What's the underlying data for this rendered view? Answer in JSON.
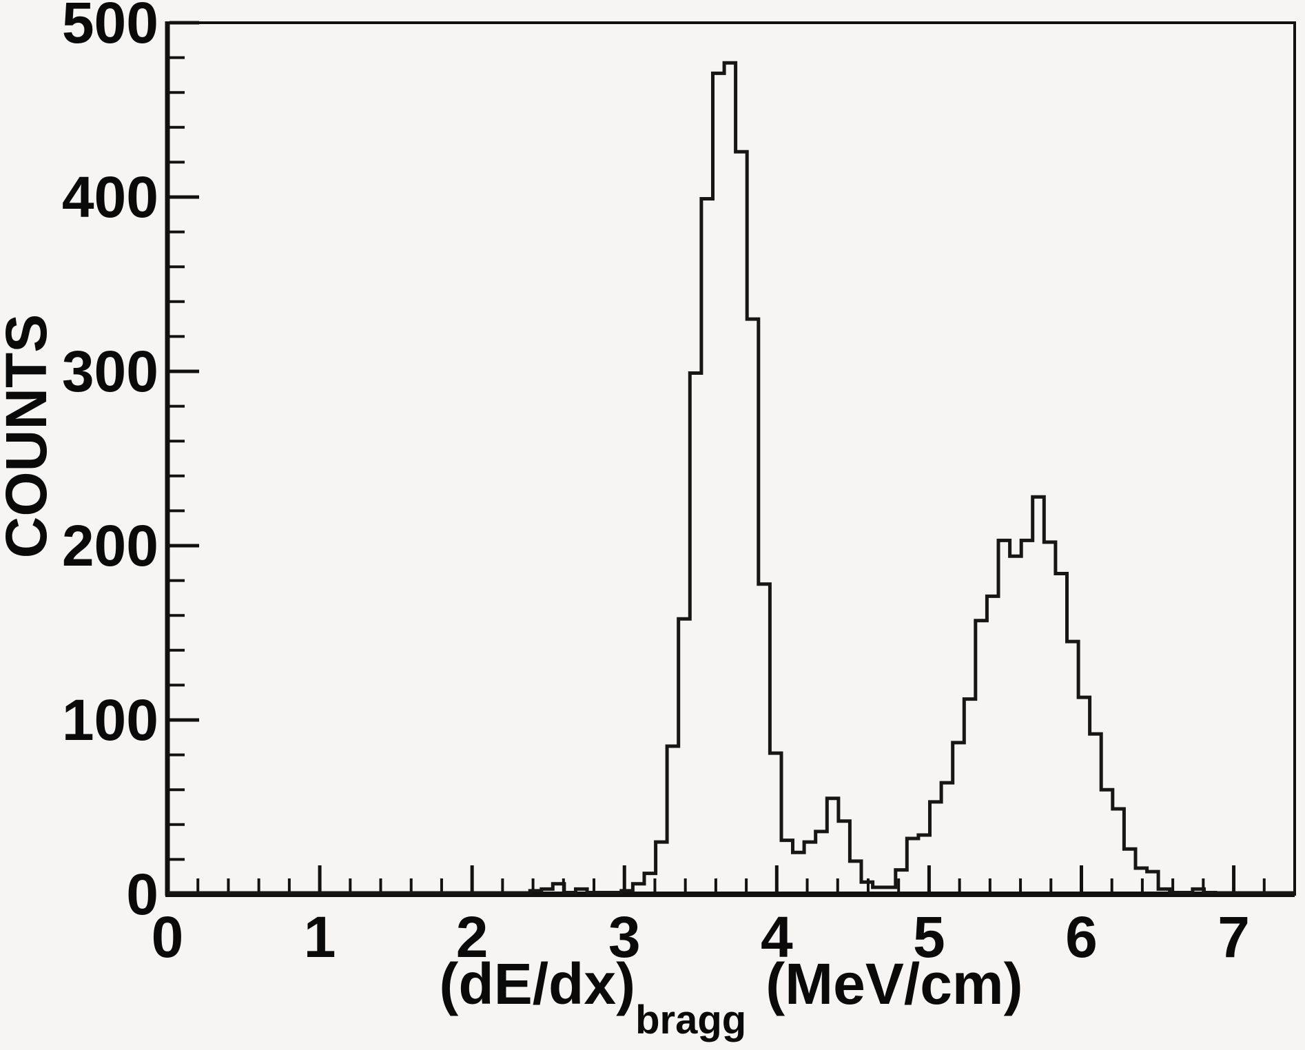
{
  "window": {
    "kind": "histogram-figure",
    "background_color": "#f6f5f4"
  },
  "colors": {
    "axis": "#111111",
    "histogram_line": "#161616",
    "text": "#0a0a0a"
  },
  "chart_data": {
    "type": "bar",
    "subtype": "step-histogram",
    "title": "",
    "ylabel": "COUNTS",
    "xlabel_main": "(dE/dx)",
    "xlabel_sub": "bragg",
    "xlabel_unit": "(MeV/cm)",
    "xlim": [
      0,
      7.4
    ],
    "ylim": [
      0,
      500
    ],
    "grid": false,
    "legend": "none",
    "x_major_ticks": [
      0,
      1,
      2,
      3,
      4,
      5,
      6,
      7
    ],
    "x_tick_labels": [
      "0",
      "1",
      "2",
      "3",
      "4",
      "5",
      "6",
      "7"
    ],
    "x_minor_tick_step": 0.2,
    "y_major_ticks": [
      0,
      100,
      200,
      300,
      400,
      500
    ],
    "y_tick_labels": [
      "0",
      "100",
      "200",
      "300",
      "400",
      "500"
    ],
    "y_minor_tick_step": 20,
    "histogram": {
      "x_start": 2.38,
      "bin_width": 0.075,
      "counts": [
        2,
        3,
        6,
        1,
        3,
        1,
        1,
        1,
        2,
        6,
        12,
        30,
        85,
        158,
        299,
        399,
        471,
        477,
        426,
        330,
        178,
        81,
        31,
        24,
        30,
        36,
        55,
        42,
        19,
        7,
        4,
        4,
        14,
        32,
        34,
        53,
        64,
        87,
        112,
        157,
        171,
        203,
        194,
        203,
        228,
        202,
        184,
        145,
        113,
        92,
        60,
        49,
        26,
        15,
        13,
        3,
        1,
        1,
        3,
        1,
        0
      ]
    },
    "annotations": {
      "first_peak": {
        "x": 3.69,
        "counts": 477
      },
      "second_peak": {
        "x": 5.72,
        "counts": 228
      },
      "small_bump": {
        "x": 4.37,
        "counts": 55
      }
    }
  }
}
